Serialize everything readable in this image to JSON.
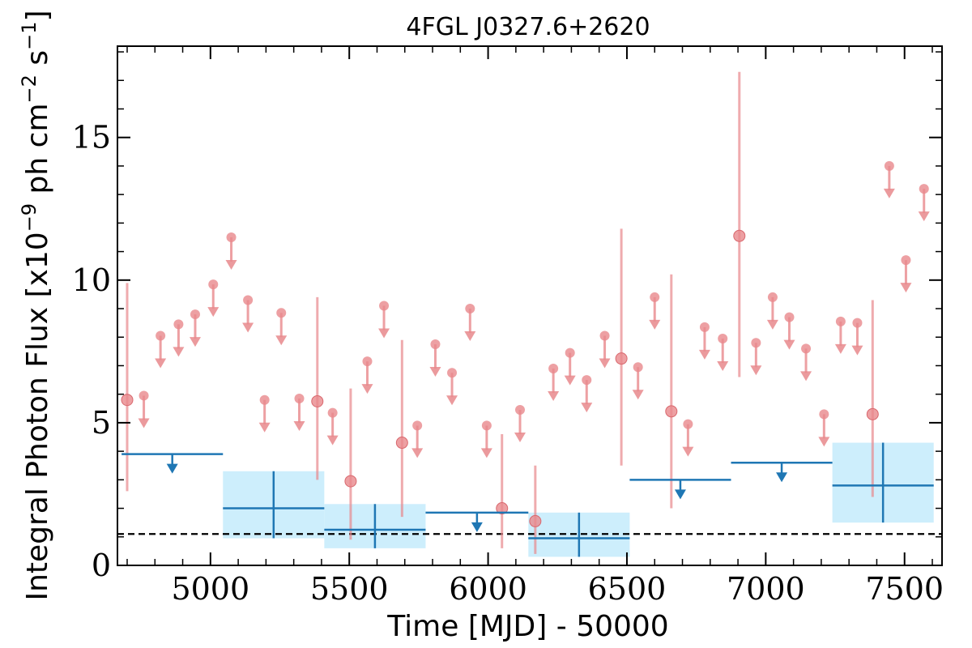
{
  "chart_data": {
    "type": "scatter",
    "title": "4FGL J0327.6+2620",
    "xlabel": "Time [MJD] - 50000",
    "ylabel": "Integral Photon Flux [x10^-9 ph cm^-2 s^-1]",
    "xlim": [
      4665,
      7635
    ],
    "ylim": [
      0,
      18.2
    ],
    "x_ticks": [
      5000,
      5500,
      6000,
      6500,
      7000,
      7500
    ],
    "y_ticks": [
      0,
      5,
      10,
      15
    ],
    "grid": false,
    "reference_line": {
      "y": 1.1,
      "style": "dashed",
      "color": "#000000"
    },
    "colors": {
      "short_bins": "#e8888c",
      "long_bins": "#1f77b4",
      "long_bins_band": "#cdeefc"
    },
    "series": [
      {
        "binning": "short",
        "detections": [
          {
            "x": 4700,
            "y": 5.8,
            "low": 2.6,
            "high": 9.9
          },
          {
            "x": 5385,
            "y": 5.75,
            "low": 3.0,
            "high": 9.4
          },
          {
            "x": 5505,
            "y": 2.95,
            "low": 0.9,
            "high": 6.2
          },
          {
            "x": 5690,
            "y": 4.3,
            "low": 1.7,
            "high": 7.9
          },
          {
            "x": 6050,
            "y": 2.0,
            "low": 0.6,
            "high": 4.6
          },
          {
            "x": 6170,
            "y": 1.55,
            "low": 0.4,
            "high": 3.5
          },
          {
            "x": 6480,
            "y": 7.25,
            "low": 3.5,
            "high": 11.8
          },
          {
            "x": 6660,
            "y": 5.4,
            "low": 2.0,
            "high": 10.2
          },
          {
            "x": 6905,
            "y": 11.55,
            "low": 6.6,
            "high": 17.3
          },
          {
            "x": 7385,
            "y": 5.3,
            "low": 2.4,
            "high": 9.3
          }
        ],
        "upper_limits": [
          {
            "x": 4760,
            "y": 5.95
          },
          {
            "x": 4820,
            "y": 8.05
          },
          {
            "x": 4885,
            "y": 8.45
          },
          {
            "x": 4945,
            "y": 8.8
          },
          {
            "x": 5010,
            "y": 9.85
          },
          {
            "x": 5075,
            "y": 11.5
          },
          {
            "x": 5135,
            "y": 9.3
          },
          {
            "x": 5195,
            "y": 5.8
          },
          {
            "x": 5255,
            "y": 8.85
          },
          {
            "x": 5320,
            "y": 5.85
          },
          {
            "x": 5440,
            "y": 5.35
          },
          {
            "x": 5565,
            "y": 7.15
          },
          {
            "x": 5625,
            "y": 9.1
          },
          {
            "x": 5745,
            "y": 4.9
          },
          {
            "x": 5810,
            "y": 7.75
          },
          {
            "x": 5870,
            "y": 6.75
          },
          {
            "x": 5935,
            "y": 9.0
          },
          {
            "x": 5995,
            "y": 4.9
          },
          {
            "x": 6115,
            "y": 5.45
          },
          {
            "x": 6235,
            "y": 6.9
          },
          {
            "x": 6295,
            "y": 7.45
          },
          {
            "x": 6355,
            "y": 6.5
          },
          {
            "x": 6420,
            "y": 8.05
          },
          {
            "x": 6540,
            "y": 6.95
          },
          {
            "x": 6600,
            "y": 9.4
          },
          {
            "x": 6720,
            "y": 4.95
          },
          {
            "x": 6780,
            "y": 8.35
          },
          {
            "x": 6845,
            "y": 7.95
          },
          {
            "x": 6965,
            "y": 7.8
          },
          {
            "x": 7025,
            "y": 9.4
          },
          {
            "x": 7085,
            "y": 8.7
          },
          {
            "x": 7145,
            "y": 7.6
          },
          {
            "x": 7210,
            "y": 5.3
          },
          {
            "x": 7270,
            "y": 8.55
          },
          {
            "x": 7330,
            "y": 8.5
          },
          {
            "x": 7445,
            "y": 14.0
          },
          {
            "x": 7505,
            "y": 10.7
          },
          {
            "x": 7570,
            "y": 13.2
          }
        ]
      },
      {
        "binning": "long",
        "detections": [
          {
            "x0": 5045,
            "x1": 5410,
            "y": 2.0,
            "low": 0.95,
            "high": 3.3
          },
          {
            "x0": 5410,
            "x1": 5775,
            "y": 1.25,
            "low": 0.6,
            "high": 2.15
          },
          {
            "x0": 6145,
            "x1": 6510,
            "y": 0.95,
            "low": 0.3,
            "high": 1.85
          },
          {
            "x0": 7240,
            "x1": 7605,
            "y": 2.8,
            "low": 1.5,
            "high": 4.3
          }
        ],
        "upper_limits": [
          {
            "x0": 4680,
            "x1": 5045,
            "y": 3.9
          },
          {
            "x0": 5775,
            "x1": 6145,
            "y": 1.85
          },
          {
            "x0": 6510,
            "x1": 6875,
            "y": 3.0
          },
          {
            "x0": 6875,
            "x1": 7240,
            "y": 3.6
          }
        ]
      }
    ]
  }
}
